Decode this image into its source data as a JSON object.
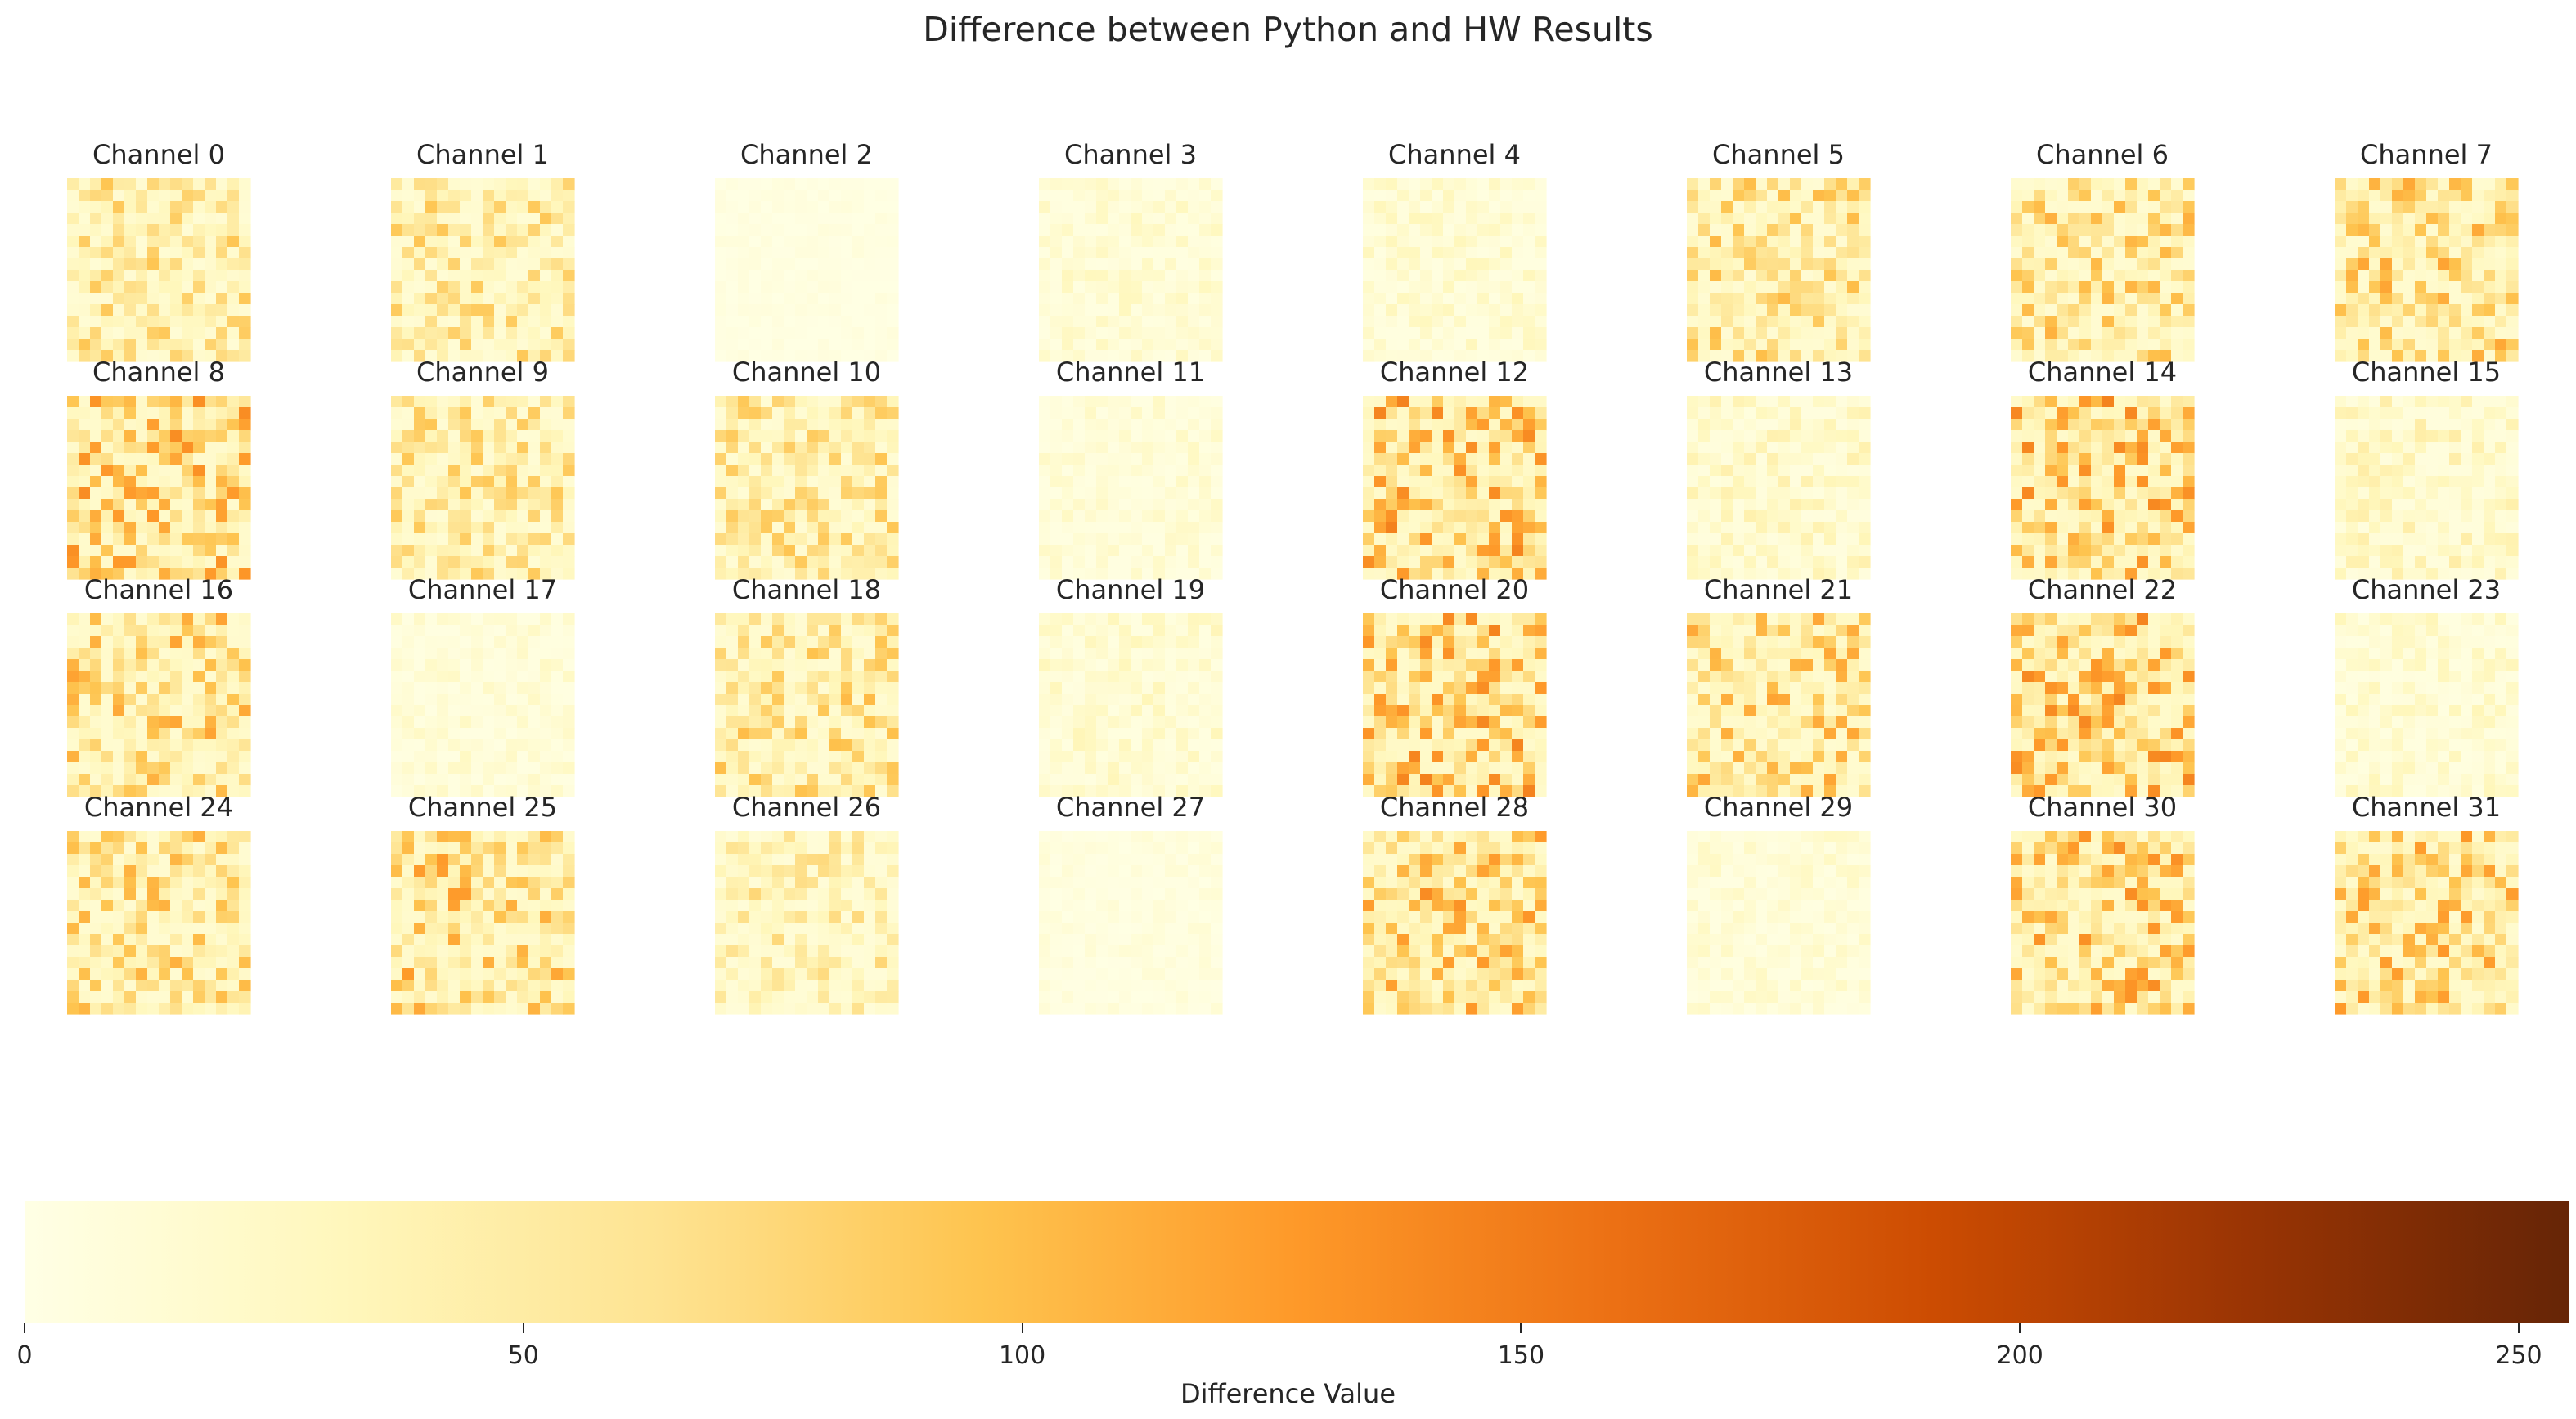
{
  "chart_data": {
    "type": "heatmap",
    "title": "Difference between Python and HW Results",
    "grid": {
      "rows": 4,
      "cols": 8,
      "cell_grid": 16
    },
    "panels": [
      {
        "label": "Channel 0",
        "intensity": 0.55
      },
      {
        "label": "Channel 1",
        "intensity": 0.55
      },
      {
        "label": "Channel 2",
        "intensity": 0.05
      },
      {
        "label": "Channel 3",
        "intensity": 0.18
      },
      {
        "label": "Channel 4",
        "intensity": 0.2
      },
      {
        "label": "Channel 5",
        "intensity": 0.6
      },
      {
        "label": "Channel 6",
        "intensity": 0.65
      },
      {
        "label": "Channel 7",
        "intensity": 0.7
      },
      {
        "label": "Channel 8",
        "intensity": 0.8
      },
      {
        "label": "Channel 9",
        "intensity": 0.55
      },
      {
        "label": "Channel 10",
        "intensity": 0.55
      },
      {
        "label": "Channel 11",
        "intensity": 0.15
      },
      {
        "label": "Channel 12",
        "intensity": 0.85
      },
      {
        "label": "Channel 13",
        "intensity": 0.25
      },
      {
        "label": "Channel 14",
        "intensity": 0.85
      },
      {
        "label": "Channel 15",
        "intensity": 0.28
      },
      {
        "label": "Channel 16",
        "intensity": 0.7
      },
      {
        "label": "Channel 17",
        "intensity": 0.15
      },
      {
        "label": "Channel 18",
        "intensity": 0.6
      },
      {
        "label": "Channel 19",
        "intensity": 0.2
      },
      {
        "label": "Channel 20",
        "intensity": 0.85
      },
      {
        "label": "Channel 21",
        "intensity": 0.7
      },
      {
        "label": "Channel 22",
        "intensity": 0.85
      },
      {
        "label": "Channel 23",
        "intensity": 0.2
      },
      {
        "label": "Channel 24",
        "intensity": 0.65
      },
      {
        "label": "Channel 25",
        "intensity": 0.75
      },
      {
        "label": "Channel 26",
        "intensity": 0.45
      },
      {
        "label": "Channel 27",
        "intensity": 0.08
      },
      {
        "label": "Channel 28",
        "intensity": 0.8
      },
      {
        "label": "Channel 29",
        "intensity": 0.15
      },
      {
        "label": "Channel 30",
        "intensity": 0.8
      },
      {
        "label": "Channel 31",
        "intensity": 0.75
      }
    ],
    "colorbar": {
      "label": "Difference Value",
      "range": [
        0,
        255
      ],
      "ticks": [
        0,
        50,
        100,
        150,
        200,
        250
      ],
      "colormap": "YlOrBr",
      "colors": [
        "#ffffe5",
        "#fff7bc",
        "#fee391",
        "#fec44f",
        "#fe9929",
        "#ec7014",
        "#cc4c02",
        "#993404",
        "#662506"
      ]
    }
  }
}
